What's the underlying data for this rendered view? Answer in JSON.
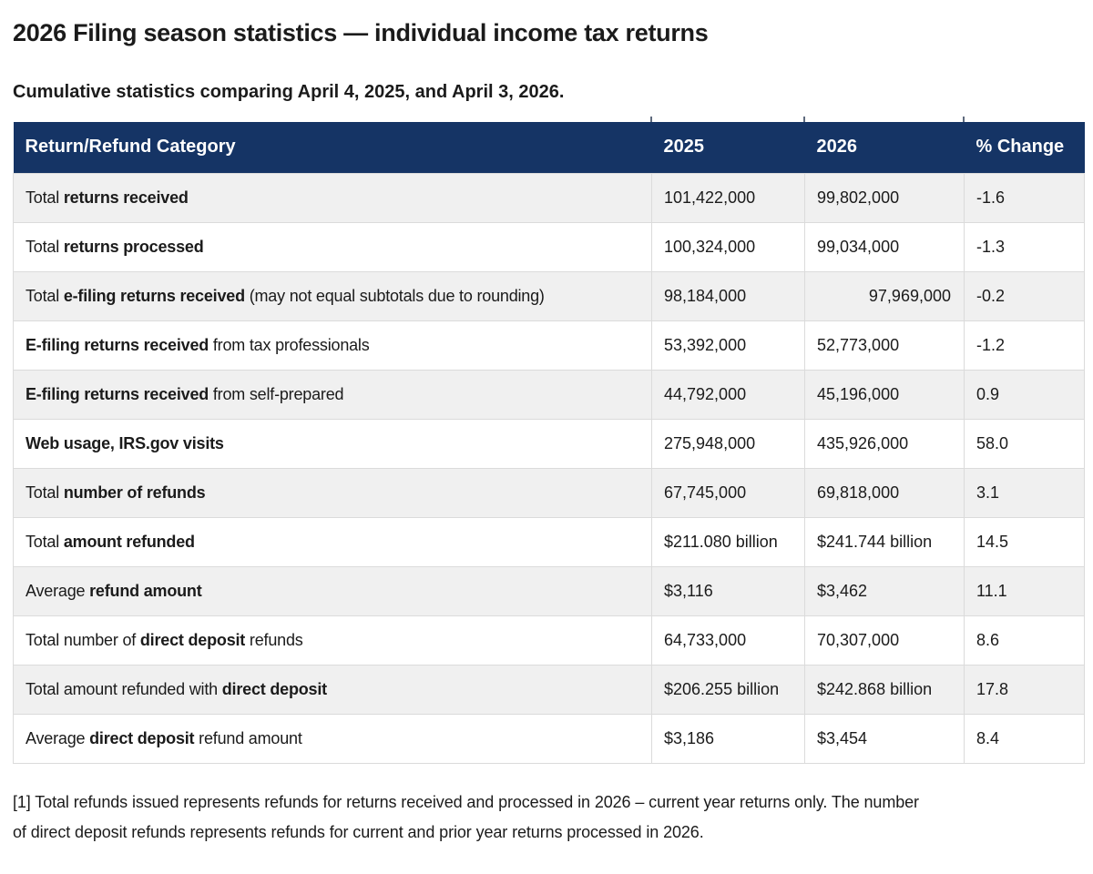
{
  "page": {
    "title": "2026 Filing season statistics — individual income tax returns",
    "subtitle": "Cumulative statistics comparing April 4, 2025, and April 3, 2026.",
    "footnote_lines": [
      "[1] Total refunds issued represents refunds for returns received and processed in 2026 – current year returns only. The number",
      "of direct deposit refunds represents refunds for current and prior year returns processed in 2026."
    ]
  },
  "colors": {
    "header_bg": "#153465",
    "header_text": "#ffffff",
    "alt_row_bg": "#f0f0f0",
    "row_bg": "#ffffff",
    "border": "#dbdbdb",
    "text": "#1b1b1b"
  },
  "table": {
    "columns": [
      "Return/Refund Category",
      "2025",
      "2026",
      "% Change"
    ],
    "rows": [
      {
        "pre": "Total ",
        "bold": "returns received",
        "post": "",
        "v2025": "101,422,000",
        "v2026": "99,802,000",
        "change": "-1.6",
        "v2026_align": "left"
      },
      {
        "pre": "Total ",
        "bold": "returns processed",
        "post": "",
        "v2025": "100,324,000",
        "v2026": "99,034,000",
        "change": "-1.3",
        "v2026_align": "left"
      },
      {
        "pre": "Total ",
        "bold": "e-filing returns received",
        "post": " (may not equal subtotals due to rounding)",
        "v2025": "98,184,000",
        "v2026": "97,969,000",
        "change": "-0.2",
        "v2026_align": "right"
      },
      {
        "pre": "",
        "bold": "E-filing returns received",
        "post": " from tax professionals",
        "v2025": "53,392,000",
        "v2026": "52,773,000",
        "change": "-1.2",
        "v2026_align": "left"
      },
      {
        "pre": "",
        "bold": "E-filing returns received",
        "post": " from self-prepared",
        "v2025": "44,792,000",
        "v2026": "45,196,000",
        "change": "0.9",
        "v2026_align": "left"
      },
      {
        "pre": "",
        "bold": "Web usage, IRS.gov visits",
        "post": "",
        "v2025": "275,948,000",
        "v2026": "435,926,000",
        "change": "58.0",
        "v2026_align": "left"
      },
      {
        "pre": "Total ",
        "bold": "number of refunds",
        "post": "",
        "v2025": "67,745,000",
        "v2026": "69,818,000",
        "change": "3.1",
        "v2026_align": "left"
      },
      {
        "pre": "Total ",
        "bold": "amount refunded",
        "post": "",
        "v2025": "$211.080 billion",
        "v2026": "$241.744 billion",
        "change": "14.5",
        "v2026_align": "left"
      },
      {
        "pre": "Average ",
        "bold": "refund amount",
        "post": "",
        "v2025": "$3,116",
        "v2026": "$3,462",
        "change": "11.1",
        "v2026_align": "left"
      },
      {
        "pre": "Total number of ",
        "bold": "direct deposit",
        "post": " refunds",
        "v2025": "64,733,000",
        "v2026": "70,307,000",
        "change": "8.6",
        "v2026_align": "left"
      },
      {
        "pre": "Total amount refunded with ",
        "bold": "direct deposit",
        "post": "",
        "v2025": "$206.255 billion",
        "v2026": "$242.868 billion",
        "change": "17.8",
        "v2026_align": "left"
      },
      {
        "pre": "Average ",
        "bold": "direct deposit",
        "post": " refund amount",
        "v2025": "$3,186",
        "v2026": "$3,454",
        "change": "8.4",
        "v2026_align": "left"
      }
    ]
  }
}
